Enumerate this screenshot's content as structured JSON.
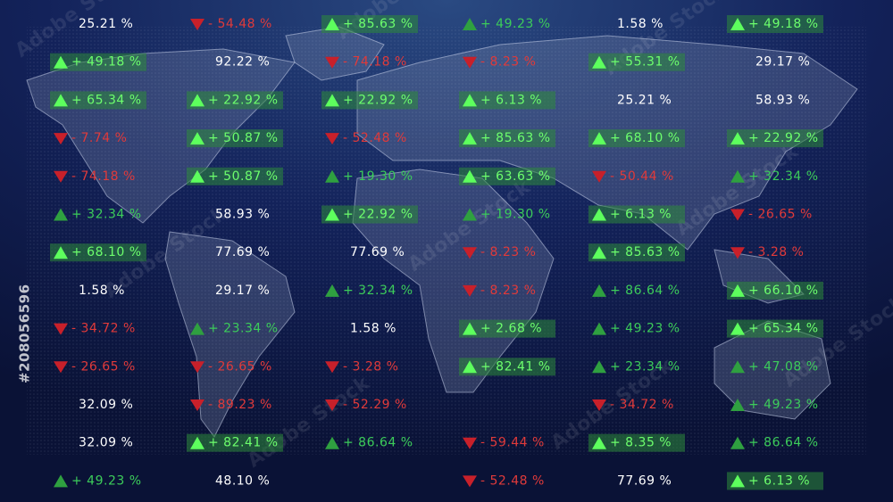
{
  "watermark": "Adobe Stock",
  "stock_id": "#208056596",
  "columns": [
    [
      {
        "text": "25.21 %",
        "trend": null,
        "highlight": false
      },
      {
        "text": "+ 49.18 %",
        "trend": "up",
        "highlight": true
      },
      {
        "text": "+ 65.34 %",
        "trend": "up",
        "highlight": true
      },
      {
        "text": "- 7.74 %",
        "trend": "down",
        "highlight": false
      },
      {
        "text": "- 74.18 %",
        "trend": "down",
        "highlight": false
      },
      {
        "text": "+ 32.34 %",
        "trend": "up",
        "highlight": false
      },
      {
        "text": "+ 68.10 %",
        "trend": "up",
        "highlight": true
      },
      {
        "text": "1.58 %",
        "trend": null,
        "highlight": false
      },
      {
        "text": "- 34.72 %",
        "trend": "down",
        "highlight": false
      },
      {
        "text": "- 26.65 %",
        "trend": "down",
        "highlight": false
      },
      {
        "text": "32.09 %",
        "trend": null,
        "highlight": false
      },
      {
        "text": "32.09 %",
        "trend": null,
        "highlight": false
      },
      {
        "text": "+ 49.23 %",
        "trend": "up",
        "highlight": false
      }
    ],
    [
      {
        "text": "- 54.48 %",
        "trend": "down",
        "highlight": false
      },
      {
        "text": "92.22 %",
        "trend": null,
        "highlight": false
      },
      {
        "text": "+ 22.92 %",
        "trend": "up",
        "highlight": true
      },
      {
        "text": "+ 50.87 %",
        "trend": "up",
        "highlight": true
      },
      {
        "text": "+ 50.87 %",
        "trend": "up",
        "highlight": true
      },
      {
        "text": "58.93 %",
        "trend": null,
        "highlight": false
      },
      {
        "text": "77.69 %",
        "trend": null,
        "highlight": false
      },
      {
        "text": "29.17 %",
        "trend": null,
        "highlight": false
      },
      {
        "text": "+ 23.34 %",
        "trend": "up",
        "highlight": false
      },
      {
        "text": "- 26.65 %",
        "trend": "down",
        "highlight": false
      },
      {
        "text": "- 89.23 %",
        "trend": "down",
        "highlight": false
      },
      {
        "text": "+ 82.41 %",
        "trend": "up",
        "highlight": true
      },
      {
        "text": "48.10 %",
        "trend": null,
        "highlight": false
      }
    ],
    [
      {
        "text": "+ 85.63 %",
        "trend": "up",
        "highlight": true
      },
      {
        "text": "- 74.18 %",
        "trend": "down",
        "highlight": false
      },
      {
        "text": "+ 22.92 %",
        "trend": "up",
        "highlight": true
      },
      {
        "text": "- 52.48 %",
        "trend": "down",
        "highlight": false
      },
      {
        "text": "+ 19.30 %",
        "trend": "up",
        "highlight": false
      },
      {
        "text": "+ 22.92 %",
        "trend": "up",
        "highlight": true
      },
      {
        "text": "77.69 %",
        "trend": null,
        "highlight": false
      },
      {
        "text": "+ 32.34 %",
        "trend": "up",
        "highlight": false
      },
      {
        "text": "1.58 %",
        "trend": null,
        "highlight": false
      },
      {
        "text": "- 3.28 %",
        "trend": "down",
        "highlight": false
      },
      {
        "text": "- 52.29 %",
        "trend": "down",
        "highlight": false
      },
      {
        "text": "+ 86.64 %",
        "trend": "up",
        "highlight": false
      },
      null
    ],
    [
      {
        "text": "+ 49.23 %",
        "trend": "up",
        "highlight": false
      },
      {
        "text": "- 8.23 %",
        "trend": "down",
        "highlight": false
      },
      {
        "text": "+ 6.13 %",
        "trend": "up",
        "highlight": true
      },
      {
        "text": "+ 85.63 %",
        "trend": "up",
        "highlight": true
      },
      {
        "text": "+ 63.63 %",
        "trend": "up",
        "highlight": true
      },
      {
        "text": "+ 19.30 %",
        "trend": "up",
        "highlight": false
      },
      {
        "text": "- 8.23 %",
        "trend": "down",
        "highlight": false
      },
      {
        "text": "- 8.23 %",
        "trend": "down",
        "highlight": false
      },
      {
        "text": "+ 2.68 %",
        "trend": "up",
        "highlight": true
      },
      {
        "text": "+ 82.41 %",
        "trend": "up",
        "highlight": true
      },
      null,
      {
        "text": "- 59.44 %",
        "trend": "down",
        "highlight": false
      },
      {
        "text": "- 52.48 %",
        "trend": "down",
        "highlight": false
      }
    ],
    [
      {
        "text": "1.58 %",
        "trend": null,
        "highlight": false
      },
      {
        "text": "+ 55.31 %",
        "trend": "up",
        "highlight": true
      },
      {
        "text": "25.21 %",
        "trend": null,
        "highlight": false
      },
      {
        "text": "+ 68.10 %",
        "trend": "up",
        "highlight": true
      },
      {
        "text": "- 50.44 %",
        "trend": "down",
        "highlight": false
      },
      {
        "text": "+ 6.13 %",
        "trend": "up",
        "highlight": true
      },
      {
        "text": "+ 85.63 %",
        "trend": "up",
        "highlight": true
      },
      {
        "text": "+ 86.64 %",
        "trend": "up",
        "highlight": false
      },
      {
        "text": "+ 49.23 %",
        "trend": "up",
        "highlight": false
      },
      {
        "text": "+ 23.34 %",
        "trend": "up",
        "highlight": false
      },
      {
        "text": "- 34.72 %",
        "trend": "down",
        "highlight": false
      },
      {
        "text": "+ 8.35 %",
        "trend": "up",
        "highlight": true
      },
      {
        "text": "77.69 %",
        "trend": null,
        "highlight": false
      }
    ],
    [
      {
        "text": "+ 49.18 %",
        "trend": "up",
        "highlight": true
      },
      {
        "text": "29.17 %",
        "trend": null,
        "highlight": false
      },
      {
        "text": "58.93 %",
        "trend": null,
        "highlight": false
      },
      {
        "text": "+ 22.92 %",
        "trend": "up",
        "highlight": true
      },
      {
        "text": "+ 32.34 %",
        "trend": "up",
        "highlight": false
      },
      {
        "text": "- 26.65 %",
        "trend": "down",
        "highlight": false
      },
      {
        "text": "- 3.28 %",
        "trend": "down",
        "highlight": false
      },
      {
        "text": "+ 66.10 %",
        "trend": "up",
        "highlight": true
      },
      {
        "text": "+ 65.34 %",
        "trend": "up",
        "highlight": true
      },
      {
        "text": "+ 47.08 %",
        "trend": "up",
        "highlight": false
      },
      {
        "text": "+ 49.23 %",
        "trend": "up",
        "highlight": false
      },
      {
        "text": "+ 86.64 %",
        "trend": "up",
        "highlight": false
      },
      {
        "text": "+ 6.13 %",
        "trend": "up",
        "highlight": true
      }
    ]
  ]
}
